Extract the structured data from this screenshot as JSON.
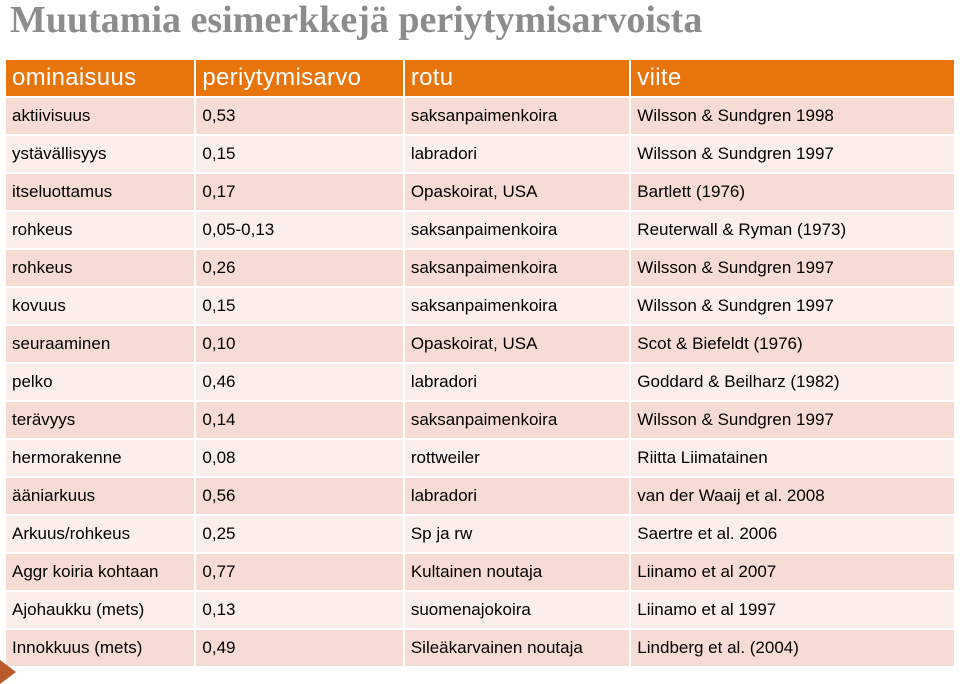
{
  "title": "Muutamia esimerkkejä periytymisarvoista",
  "headers": [
    "ominaisuus",
    "periytymisarvo",
    "rotu",
    "viite"
  ],
  "rows": [
    [
      "aktiivisuus",
      "0,53",
      "saksanpaimenkoira",
      "Wilsson & Sundgren 1998"
    ],
    [
      "ystävällisyys",
      "0,15",
      "labradori",
      "Wilsson & Sundgren 1997"
    ],
    [
      "itseluottamus",
      "0,17",
      "Opaskoirat, USA",
      "Bartlett (1976)"
    ],
    [
      "rohkeus",
      "0,05-0,13",
      "saksanpaimenkoira",
      "Reuterwall & Ryman (1973)"
    ],
    [
      "rohkeus",
      "0,26",
      "saksanpaimenkoira",
      "Wilsson & Sundgren 1997"
    ],
    [
      "kovuus",
      "0,15",
      "saksanpaimenkoira",
      "Wilsson & Sundgren 1997"
    ],
    [
      "seuraaminen",
      "0,10",
      "Opaskoirat, USA",
      "Scot & Biefeldt (1976)"
    ],
    [
      "pelko",
      "0,46",
      "labradori",
      "Goddard & Beilharz (1982)"
    ],
    [
      "terävyys",
      "0,14",
      "saksanpaimenkoira",
      "Wilsson & Sundgren 1997"
    ],
    [
      "hermorakenne",
      "0,08",
      "rottweiler",
      "Riitta Liimatainen"
    ],
    [
      "ääniarkuus",
      "0,56",
      "labradori",
      "van der Waaij et al. 2008"
    ],
    [
      "Arkuus/rohkeus",
      "0,25",
      "Sp ja rw",
      "Saertre et al. 2006"
    ],
    [
      "Aggr koiria kohtaan",
      "0,77",
      "Kultainen noutaja",
      "Liinamo et al 2007"
    ],
    [
      "Ajohaukku (mets)",
      "0,13",
      "suomenajokoira",
      "Liinamo et al 1997"
    ],
    [
      "Innokkuus (mets)",
      "0,49",
      "Sileäkarvainen noutaja",
      "Lindberg et al. (2004)"
    ]
  ]
}
